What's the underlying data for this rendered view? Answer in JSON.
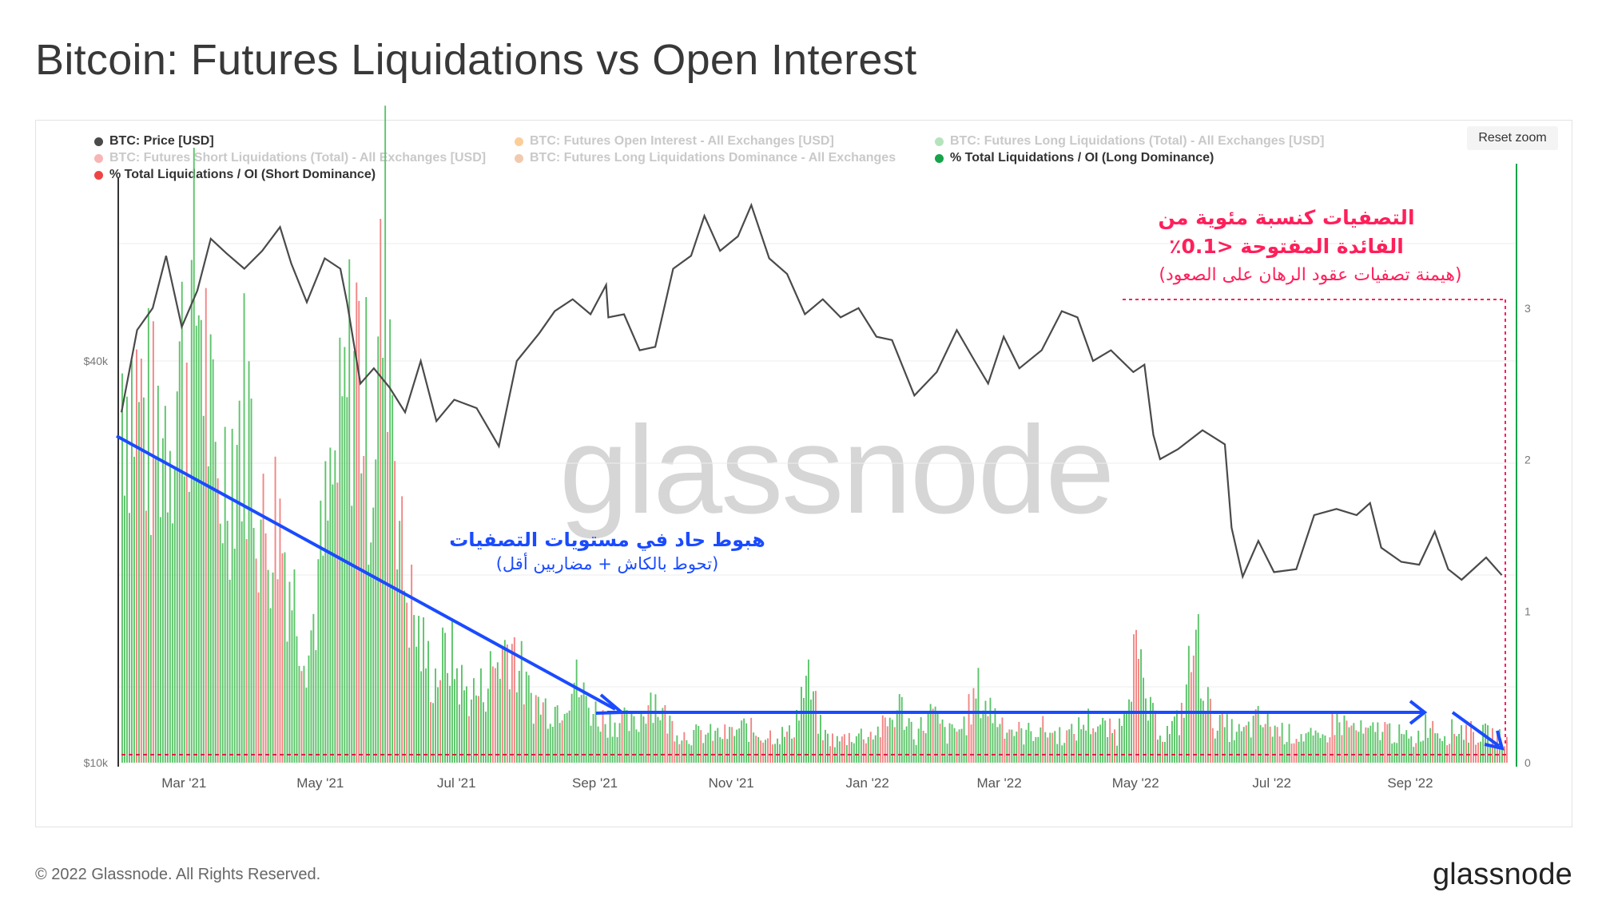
{
  "title": "Bitcoin: Futures Liquidations vs Open Interest",
  "reset_zoom": "Reset zoom",
  "footer": "© 2022 Glassnode. All Rights Reserved.",
  "brand": "glassnode",
  "watermark": "glassnode",
  "legend": [
    {
      "label": "BTC: Price [USD]",
      "color": "#4a4a4a",
      "active": true
    },
    {
      "label": "BTC: Futures Open Interest - All Exchanges [USD]",
      "color": "#f7931a",
      "active": false
    },
    {
      "label": "BTC: Futures Long Liquidations (Total) - All Exchanges [USD]",
      "color": "#5cc46a",
      "active": false
    },
    {
      "label": "BTC: Futures Short Liquidations (Total) - All Exchanges [USD]",
      "color": "#f05a5a",
      "active": false
    },
    {
      "label": "BTC: Futures Long Liquidations Dominance - All Exchanges",
      "color": "#e08a4a",
      "active": false
    },
    {
      "label": "% Total Liquidations / OI (Long Dominance)",
      "color": "#16a34a",
      "active": true
    },
    {
      "label": "% Total Liquidations / OI (Short Dominance)",
      "color": "#ef4444",
      "active": true
    }
  ],
  "annotations": {
    "blue_line1": "هبوط حاد في مستويات التصفيات",
    "blue_line2": "(تحوط بالكاش + مضاربين أقل)",
    "pink_line1": "التصفيات كنسبة مئوية من",
    "pink_line2": "الفائدة المفتوحة <0.1٪",
    "pink_line3": "(هيمنة تصفيات عقود الرهان على الصعود)"
  },
  "chart_data": {
    "type": "bar",
    "title": "Bitcoin: Futures Liquidations vs Open Interest",
    "x_ticks": [
      "Mar '21",
      "May '21",
      "Jul '21",
      "Sep '21",
      "Nov '21",
      "Jan '22",
      "Mar '22",
      "May '22",
      "Jul '22",
      "Sep '22"
    ],
    "x_range": [
      "2021-02-01",
      "2022-10-15"
    ],
    "y_left_ticks": [
      "$10k",
      "$40k"
    ],
    "y_left_scale": "log",
    "y_right_ticks": [
      "0",
      "1",
      "2",
      "3"
    ],
    "y_right_range": [
      0,
      3.8
    ],
    "reference_line": {
      "value": 0.05,
      "axis": "right",
      "color": "#e11d48",
      "style": "dashed"
    },
    "price_series": {
      "name": "BTC: Price [USD]",
      "color": "#4a4a4a",
      "points": [
        [
          "2021-02-01",
          33500
        ],
        [
          "2021-02-08",
          44500
        ],
        [
          "2021-02-15",
          48000
        ],
        [
          "2021-02-21",
          57500
        ],
        [
          "2021-02-28",
          45000
        ],
        [
          "2021-03-07",
          51000
        ],
        [
          "2021-03-13",
          61000
        ],
        [
          "2021-03-20",
          58000
        ],
        [
          "2021-03-28",
          55000
        ],
        [
          "2021-04-05",
          58500
        ],
        [
          "2021-04-13",
          63500
        ],
        [
          "2021-04-18",
          56000
        ],
        [
          "2021-04-25",
          49000
        ],
        [
          "2021-05-03",
          57000
        ],
        [
          "2021-05-10",
          55000
        ],
        [
          "2021-05-13",
          49000
        ],
        [
          "2021-05-19",
          37000
        ],
        [
          "2021-05-25",
          39000
        ],
        [
          "2021-06-01",
          36500
        ],
        [
          "2021-06-08",
          33500
        ],
        [
          "2021-06-15",
          40000
        ],
        [
          "2021-06-22",
          32500
        ],
        [
          "2021-06-30",
          35000
        ],
        [
          "2021-07-10",
          34000
        ],
        [
          "2021-07-20",
          29800
        ],
        [
          "2021-07-28",
          40000
        ],
        [
          "2021-08-07",
          44000
        ],
        [
          "2021-08-14",
          47500
        ],
        [
          "2021-08-22",
          49500
        ],
        [
          "2021-08-30",
          47000
        ],
        [
          "2021-09-06",
          52000
        ],
        [
          "2021-09-07",
          46500
        ],
        [
          "2021-09-14",
          47000
        ],
        [
          "2021-09-21",
          41500
        ],
        [
          "2021-09-28",
          42000
        ],
        [
          "2021-10-06",
          55000
        ],
        [
          "2021-10-14",
          57500
        ],
        [
          "2021-10-20",
          66000
        ],
        [
          "2021-10-27",
          58500
        ],
        [
          "2021-11-04",
          61500
        ],
        [
          "2021-11-10",
          68500
        ],
        [
          "2021-11-18",
          57000
        ],
        [
          "2021-11-26",
          54000
        ],
        [
          "2021-12-04",
          47000
        ],
        [
          "2021-12-12",
          49500
        ],
        [
          "2021-12-20",
          46500
        ],
        [
          "2021-12-28",
          48000
        ],
        [
          "2022-01-05",
          43500
        ],
        [
          "2022-01-12",
          43000
        ],
        [
          "2022-01-22",
          35500
        ],
        [
          "2022-02-01",
          38500
        ],
        [
          "2022-02-10",
          44500
        ],
        [
          "2022-02-18",
          40000
        ],
        [
          "2022-02-24",
          37000
        ],
        [
          "2022-03-03",
          43500
        ],
        [
          "2022-03-10",
          39000
        ],
        [
          "2022-03-20",
          41500
        ],
        [
          "2022-03-29",
          47500
        ],
        [
          "2022-04-05",
          46500
        ],
        [
          "2022-04-12",
          40000
        ],
        [
          "2022-04-20",
          41500
        ],
        [
          "2022-04-30",
          38500
        ],
        [
          "2022-05-05",
          39500
        ],
        [
          "2022-05-09",
          31000
        ],
        [
          "2022-05-12",
          28500
        ],
        [
          "2022-05-20",
          29500
        ],
        [
          "2022-05-31",
          31500
        ],
        [
          "2022-06-10",
          30000
        ],
        [
          "2022-06-13",
          22500
        ],
        [
          "2022-06-18",
          19000
        ],
        [
          "2022-06-25",
          21500
        ],
        [
          "2022-07-02",
          19300
        ],
        [
          "2022-07-12",
          19500
        ],
        [
          "2022-07-20",
          23500
        ],
        [
          "2022-07-30",
          24000
        ],
        [
          "2022-08-08",
          23500
        ],
        [
          "2022-08-14",
          24500
        ],
        [
          "2022-08-19",
          21000
        ],
        [
          "2022-08-28",
          20000
        ],
        [
          "2022-09-05",
          19800
        ],
        [
          "2022-09-12",
          22200
        ],
        [
          "2022-09-18",
          19500
        ],
        [
          "2022-09-24",
          18800
        ],
        [
          "2022-10-05",
          20300
        ],
        [
          "2022-10-12",
          19100
        ]
      ]
    },
    "liquidation_bars": {
      "long_color": "#5cc46a",
      "short_color": "#f28585",
      "weekly_values": [
        2.8,
        2.6,
        2.3,
        2.5,
        2.9,
        3.4,
        1.9,
        2.2,
        2.6,
        1.6,
        1.8,
        1.2,
        0.8,
        1.6,
        2.2,
        3.1,
        2.1,
        3.7,
        1.4,
        0.9,
        0.6,
        0.8,
        0.5,
        0.5,
        0.7,
        0.9,
        0.5,
        0.4,
        0.4,
        0.6,
        0.4,
        0.3,
        0.3,
        0.25,
        0.5,
        0.3,
        0.2,
        0.2,
        0.2,
        0.2,
        0.25,
        0.2,
        0.2,
        0.2,
        0.6,
        0.2,
        0.15,
        0.2,
        0.2,
        0.25,
        0.4,
        0.2,
        0.35,
        0.2,
        0.25,
        0.5,
        0.35,
        0.25,
        0.2,
        0.25,
        0.2,
        0.2,
        0.3,
        0.25,
        0.2,
        0.8,
        0.35,
        0.2,
        0.3,
        0.9,
        0.3,
        0.25,
        0.2,
        0.3,
        0.25,
        0.2,
        0.2,
        0.15,
        0.3,
        0.25,
        0.2,
        0.25,
        0.2,
        0.15,
        0.3,
        0.2,
        0.25,
        0.2,
        0.2,
        0.15
      ]
    }
  }
}
